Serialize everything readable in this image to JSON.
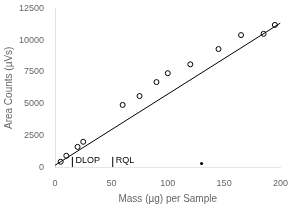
{
  "chart_data": {
    "type": "scatter",
    "xlabel": "Mass (µg) per Sample",
    "ylabel": "Area Counts (µVs)",
    "xlim": [
      0,
      200
    ],
    "ylim": [
      0,
      12500
    ],
    "xticks": [
      0,
      50,
      100,
      150,
      200
    ],
    "yticks": [
      0,
      2500,
      5000,
      7500,
      10000,
      12500
    ],
    "grid": false,
    "color": "#000000",
    "series": [
      {
        "type": "line",
        "x": [
          0,
          200
        ],
        "values": [
          150,
          11350
        ],
        "line_style": "solid"
      },
      {
        "type": "scatter",
        "x": [
          5,
          10,
          20,
          25,
          60,
          75,
          90,
          100,
          120,
          145,
          165,
          185,
          195
        ],
        "values": [
          430,
          900,
          1600,
          2000,
          4900,
          5600,
          6700,
          7400,
          8100,
          9300,
          10400,
          10500,
          11200
        ],
        "marker": "open_circle"
      },
      {
        "type": "scatter",
        "x": [
          130
        ],
        "values": [
          300
        ],
        "marker": "dot"
      },
      {
        "type": "line",
        "x": [
          15.4,
          15.4
        ],
        "values": [
          0,
          812.5
        ],
        "line_style": "solid"
      },
      {
        "type": "line",
        "x": [
          51.2,
          51.2
        ],
        "values": [
          0,
          812.5
        ],
        "line_style": "solid"
      }
    ],
    "annotations": [
      {
        "text": "DLOP",
        "x": 15.4,
        "y": 150
      },
      {
        "text": "RQL",
        "x": 51.2,
        "y": 150
      }
    ]
  }
}
